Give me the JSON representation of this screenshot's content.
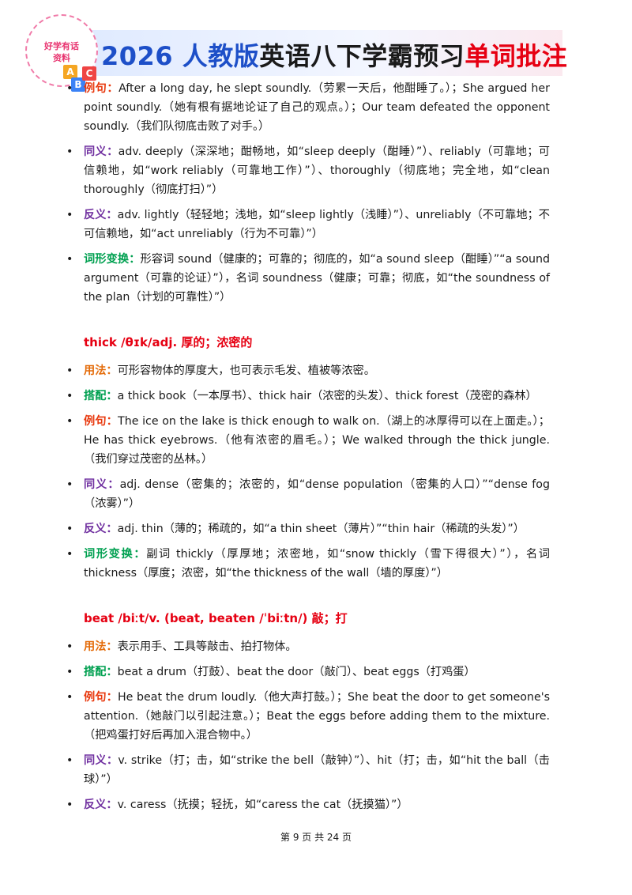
{
  "header": {
    "logo": [
      "好学有话",
      "资料"
    ],
    "blocks": [
      "A",
      "B",
      "C"
    ],
    "title": [
      {
        "text": "2026 人教版",
        "color": "#1d4fc8"
      },
      {
        "text": "英语八下学霸预习",
        "color": "#1a1a1a"
      },
      {
        "text": "单词批注",
        "color": "#e60012"
      }
    ]
  },
  "sections": [
    {
      "bullets": [
        {
          "label": "例句：",
          "color": "#e8380d",
          "text": "After a long day, he slept soundly.（劳累一天后，他酣睡了。）；She argued her point soundly.（她有根有据地论证了自己的观点。）；Our team defeated the opponent soundly.（我们队彻底击败了对手。）"
        },
        {
          "label": "同义：",
          "color": "#7030a0",
          "text": "adv. deeply（深深地；酣畅地，如“sleep deeply（酣睡）”）、reliably（可靠地；可信赖地，如“work reliably（可靠地工作）”）、thoroughly（彻底地；完全地，如“clean thoroughly（彻底打扫）”）"
        },
        {
          "label": "反义：",
          "color": "#7030a0",
          "text": "adv. lightly（轻轻地；浅地，如“sleep lightly（浅睡）”）、unreliably（不可靠地；不可信赖地，如“act unreliably（行为不可靠）”）"
        },
        {
          "label": "词形变换：",
          "color": "#00a050",
          "text": "形容词 sound（健康的；可靠的；彻底的，如“a sound sleep（酣睡）”“a sound argument（可靠的论证）”），名词 soundness（健康；可靠；彻底，如“the soundness of the plan（计划的可靠性）”）"
        }
      ]
    },
    {
      "heading": "thick /θɪk/adj. 厚的；浓密的",
      "bullets": [
        {
          "label": "用法：",
          "color": "#e46c0a",
          "text": "可形容物体的厚度大，也可表示毛发、植被等浓密。"
        },
        {
          "label": "搭配：",
          "color": "#00a050",
          "text": "a thick book（一本厚书）、thick hair（浓密的头发）、thick forest（茂密的森林）"
        },
        {
          "label": "例句：",
          "color": "#e8380d",
          "text": "The ice on the lake is thick enough to walk on.（湖上的冰厚得可以在上面走。）；He has thick eyebrows.（他有浓密的眉毛。）；We walked through the thick jungle.（我们穿过茂密的丛林。）"
        },
        {
          "label": "同义：",
          "color": "#7030a0",
          "text": "adj. dense（密集的；浓密的，如“dense population（密集的人口）”“dense fog（浓雾）”）"
        },
        {
          "label": "反义：",
          "color": "#7030a0",
          "text": "adj. thin（薄的；稀疏的，如“a thin sheet（薄片）”“thin hair（稀疏的头发）”）"
        },
        {
          "label": "词形变换：",
          "color": "#00a050",
          "text": "副词 thickly（厚厚地；浓密地，如“snow thickly（雪下得很大）”），名词 thickness（厚度；浓密，如“the thickness of the wall（墙的厚度）”）"
        }
      ]
    },
    {
      "heading": "beat /biːt/v. (beat, beaten /ˈbiːtn/) 敲；打",
      "bullets": [
        {
          "label": "用法：",
          "color": "#e46c0a",
          "text": "表示用手、工具等敲击、拍打物体。"
        },
        {
          "label": "搭配：",
          "color": "#00a050",
          "text": "beat a drum（打鼓）、beat the door（敲门）、beat eggs（打鸡蛋）"
        },
        {
          "label": "例句：",
          "color": "#e8380d",
          "text": "He beat the drum loudly.（他大声打鼓。）；She beat the door to get someone's attention.（她敲门以引起注意。）；Beat the eggs before adding them to the mixture.（把鸡蛋打好后再加入混合物中。）"
        },
        {
          "label": "同义：",
          "color": "#7030a0",
          "text": "v. strike（打；击，如“strike the bell（敲钟）”）、hit（打；击，如“hit the ball（击球）”）"
        },
        {
          "label": "反义：",
          "color": "#7030a0",
          "text": "v. caress（抚摸；轻抚，如“caress the cat（抚摸猫）”）"
        }
      ]
    }
  ],
  "footer": "第 9 页 共 24 页"
}
